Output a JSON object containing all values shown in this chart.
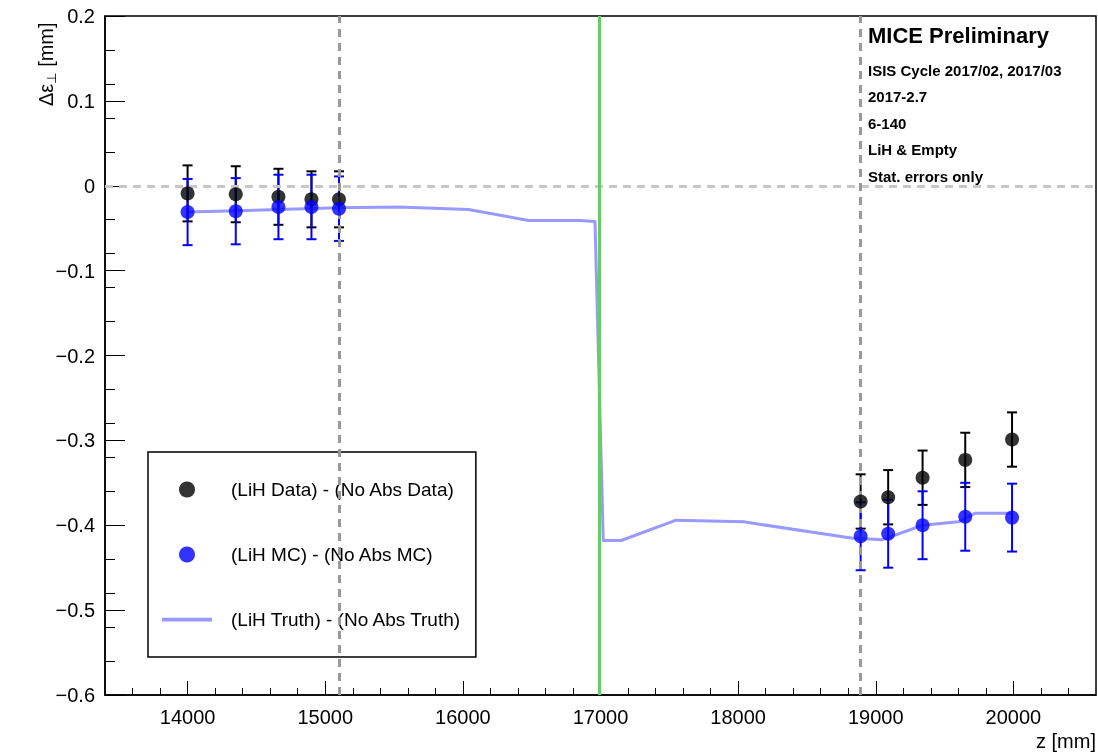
{
  "chart_data": {
    "type": "scatter",
    "xlabel": "z [mm]",
    "ylabel": "Δε$_{⊥}$ [mm]",
    "xlim": [
      13400,
      20600
    ],
    "xticks": [
      14000,
      15000,
      16000,
      17000,
      18000,
      19000,
      20000
    ],
    "ylim": [
      -0.6,
      0.2
    ],
    "yticks": [
      -0.6,
      -0.5,
      -0.4,
      -0.3,
      -0.2,
      -0.1,
      0,
      0.1,
      0.2
    ],
    "grid": false,
    "legend": "bottom left",
    "marker": "circle",
    "annotations": [
      "MICE Preliminary",
      "ISIS Cycle 2017/02, 2017/03",
      "2017-2.7",
      "6-140",
      "LiH & Empty",
      "Stat. errors only"
    ],
    "ref_lines": [
      {
        "axis": "y",
        "value": 0,
        "color": "#c8c8c8",
        "line_style": "dashed"
      },
      {
        "axis": "x",
        "value": 15100,
        "color": "#999999",
        "line_style": "dashed"
      },
      {
        "axis": "x",
        "value": 18890,
        "color": "#999999",
        "line_style": "dashed"
      },
      {
        "axis": "x",
        "value": 16990,
        "color": "#66cc66",
        "line_style": "solid"
      }
    ],
    "series": [
      {
        "name": "(LiH Data) - (No Abs Data)",
        "color": "#000000",
        "x": [
          14000,
          14350,
          14660,
          14900,
          15100,
          18890,
          19090,
          19340,
          19650,
          19990
        ],
        "values": [
          -0.009,
          -0.01,
          -0.013,
          -0.016,
          -0.016,
          -0.372,
          -0.367,
          -0.344,
          -0.323,
          -0.299
        ],
        "errors": [
          0.033,
          0.033,
          0.033,
          0.033,
          0.033,
          0.032,
          0.032,
          0.032,
          0.032,
          0.032
        ]
      },
      {
        "name": "(LiH MC) - (No Abs MC)",
        "color": "#0000ff",
        "x": [
          14000,
          14350,
          14660,
          14900,
          15100,
          18890,
          19090,
          19340,
          19650,
          19990
        ],
        "values": [
          -0.031,
          -0.03,
          -0.025,
          -0.025,
          -0.027,
          -0.413,
          -0.41,
          -0.4,
          -0.39,
          -0.391
        ],
        "errors": [
          0.039,
          0.039,
          0.038,
          0.038,
          0.038,
          0.04,
          0.04,
          0.04,
          0.04,
          0.04
        ]
      },
      {
        "name": "(LiH Truth) - (No Abs Truth)",
        "type": "line",
        "color": "#9999ff",
        "marker": "none",
        "x": [
          14000,
          14660,
          15100,
          15530,
          16040,
          16480,
          16850,
          16960,
          17020,
          17150,
          17550,
          18040,
          18820,
          19050,
          19340,
          19600,
          19720,
          19990
        ],
        "values": [
          -0.031,
          -0.028,
          -0.026,
          -0.025,
          -0.028,
          -0.041,
          -0.041,
          -0.042,
          -0.418,
          -0.418,
          -0.394,
          -0.396,
          -0.415,
          -0.417,
          -0.4,
          -0.396,
          -0.386,
          -0.386
        ]
      }
    ]
  }
}
